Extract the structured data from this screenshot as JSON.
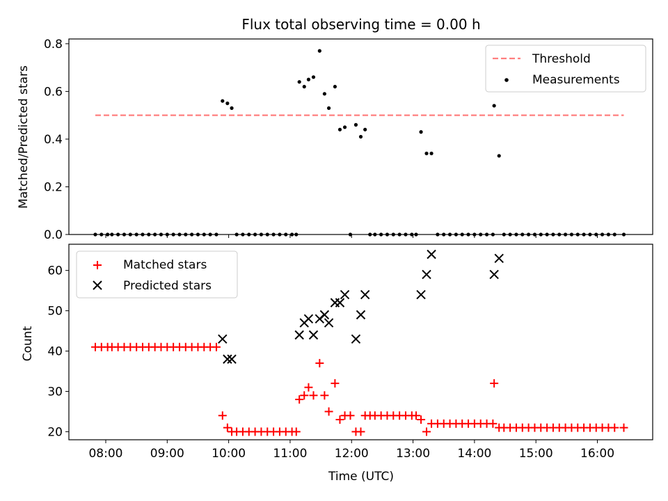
{
  "chart_data": [
    {
      "type": "scatter",
      "title": "Flux total observing time = 0.00 h",
      "xlabel": "",
      "ylabel": "Matched/Predicted stars",
      "xlim": [
        7.4,
        16.9
      ],
      "ylim": [
        0.0,
        0.82
      ],
      "yticks": [
        0.0,
        0.2,
        0.4,
        0.6,
        0.8
      ],
      "ytick_labels": [
        "0.0",
        "0.2",
        "0.4",
        "0.6",
        "0.8"
      ],
      "legend_position": "upper right",
      "series": [
        {
          "name": "Threshold",
          "style": "dashed-line",
          "color": "#ff7f7f",
          "x": [
            7.83,
            16.43
          ],
          "y": [
            0.5,
            0.5
          ]
        },
        {
          "name": "Measurements",
          "style": "dot",
          "color": "#000000",
          "x": [
            7.83,
            7.93,
            8.03,
            8.1,
            8.2,
            8.3,
            8.4,
            8.5,
            8.6,
            8.7,
            8.8,
            8.9,
            9.0,
            9.1,
            9.2,
            9.3,
            9.4,
            9.5,
            9.6,
            9.7,
            9.8,
            9.9,
            9.98,
            10.05,
            10.13,
            10.23,
            10.33,
            10.43,
            10.53,
            10.63,
            10.73,
            10.83,
            10.93,
            11.03,
            11.1,
            11.15,
            11.23,
            11.3,
            11.38,
            11.48,
            11.56,
            11.63,
            11.73,
            11.81,
            11.89,
            11.98,
            12.07,
            12.15,
            12.22,
            12.3,
            12.38,
            12.48,
            12.58,
            12.68,
            12.78,
            12.88,
            12.98,
            13.05,
            13.13,
            13.22,
            13.3,
            13.4,
            13.5,
            13.6,
            13.7,
            13.8,
            13.9,
            14.0,
            14.1,
            14.2,
            14.3,
            14.32,
            14.4,
            14.48,
            14.58,
            14.68,
            14.78,
            14.88,
            14.98,
            15.08,
            15.18,
            15.28,
            15.38,
            15.48,
            15.58,
            15.68,
            15.78,
            15.88,
            15.98,
            16.08,
            16.18,
            16.28,
            16.43
          ],
          "y": [
            0,
            0,
            0,
            0,
            0,
            0,
            0,
            0,
            0,
            0,
            0,
            0,
            0,
            0,
            0,
            0,
            0,
            0,
            0,
            0,
            0,
            0.56,
            0.55,
            0.53,
            0,
            0,
            0,
            0,
            0,
            0,
            0,
            0,
            0,
            0,
            0,
            0.64,
            0.62,
            0.65,
            0.66,
            0.77,
            0.59,
            0.53,
            0.62,
            0.44,
            0.45,
            0,
            0.46,
            0.41,
            0.44,
            0,
            0,
            0,
            0,
            0,
            0,
            0,
            0,
            0,
            0.43,
            0.34,
            0.34,
            0,
            0,
            0,
            0,
            0,
            0,
            0,
            0,
            0,
            0,
            0.54,
            0.33,
            0,
            0,
            0,
            0,
            0,
            0,
            0,
            0,
            0,
            0,
            0,
            0,
            0,
            0,
            0,
            0,
            0,
            0,
            0,
            0
          ]
        }
      ]
    },
    {
      "type": "scatter",
      "title": "",
      "xlabel": "Time (UTC)",
      "ylabel": "Count",
      "xlim": [
        7.4,
        16.9
      ],
      "ylim": [
        18,
        66.5
      ],
      "yticks": [
        20,
        30,
        40,
        50,
        60
      ],
      "ytick_labels": [
        "20",
        "30",
        "40",
        "50",
        "60"
      ],
      "xticks": [
        8,
        9,
        10,
        11,
        12,
        13,
        14,
        15,
        16
      ],
      "xtick_labels": [
        "08:00",
        "09:00",
        "10:00",
        "11:00",
        "12:00",
        "13:00",
        "14:00",
        "15:00",
        "16:00"
      ],
      "legend_position": "upper left",
      "series": [
        {
          "name": "Matched stars",
          "marker": "plus",
          "color": "#ff0000",
          "x": [
            7.83,
            7.93,
            8.03,
            8.1,
            8.2,
            8.3,
            8.4,
            8.5,
            8.6,
            8.7,
            8.8,
            8.9,
            9.0,
            9.1,
            9.2,
            9.3,
            9.4,
            9.5,
            9.6,
            9.7,
            9.8,
            9.9,
            9.98,
            10.05,
            10.13,
            10.23,
            10.33,
            10.43,
            10.53,
            10.63,
            10.73,
            10.83,
            10.93,
            11.03,
            11.1,
            11.15,
            11.23,
            11.3,
            11.38,
            11.48,
            11.56,
            11.63,
            11.73,
            11.81,
            11.89,
            11.98,
            12.07,
            12.15,
            12.22,
            12.3,
            12.38,
            12.48,
            12.58,
            12.68,
            12.78,
            12.88,
            12.98,
            13.05,
            13.13,
            13.22,
            13.3,
            13.4,
            13.5,
            13.6,
            13.7,
            13.8,
            13.9,
            14.0,
            14.1,
            14.2,
            14.3,
            14.32,
            14.4,
            14.48,
            14.58,
            14.68,
            14.78,
            14.88,
            14.98,
            15.08,
            15.18,
            15.28,
            15.38,
            15.48,
            15.58,
            15.68,
            15.78,
            15.88,
            15.98,
            16.08,
            16.18,
            16.28,
            16.43
          ],
          "y": [
            41,
            41,
            41,
            41,
            41,
            41,
            41,
            41,
            41,
            41,
            41,
            41,
            41,
            41,
            41,
            41,
            41,
            41,
            41,
            41,
            41,
            24,
            21,
            20,
            20,
            20,
            20,
            20,
            20,
            20,
            20,
            20,
            20,
            20,
            20,
            28,
            29,
            31,
            29,
            37,
            29,
            25,
            32,
            23,
            24,
            24,
            20,
            20,
            24,
            24,
            24,
            24,
            24,
            24,
            24,
            24,
            24,
            24,
            23,
            20,
            22,
            22,
            22,
            22,
            22,
            22,
            22,
            22,
            22,
            22,
            22,
            32,
            21,
            21,
            21,
            21,
            21,
            21,
            21,
            21,
            21,
            21,
            21,
            21,
            21,
            21,
            21,
            21,
            21,
            21,
            21,
            21,
            21
          ]
        },
        {
          "name": "Predicted stars",
          "marker": "x",
          "color": "#000000",
          "x": [
            9.9,
            9.98,
            10.05,
            11.15,
            11.23,
            11.3,
            11.38,
            11.48,
            11.56,
            11.63,
            11.73,
            11.81,
            11.89,
            12.07,
            12.15,
            12.22,
            13.13,
            13.22,
            13.3,
            14.32,
            14.4
          ],
          "y": [
            43,
            38,
            38,
            44,
            47,
            48,
            44,
            48,
            49,
            47,
            52,
            52,
            54,
            43,
            49,
            54,
            54,
            59,
            64,
            59,
            63
          ]
        }
      ]
    }
  ]
}
